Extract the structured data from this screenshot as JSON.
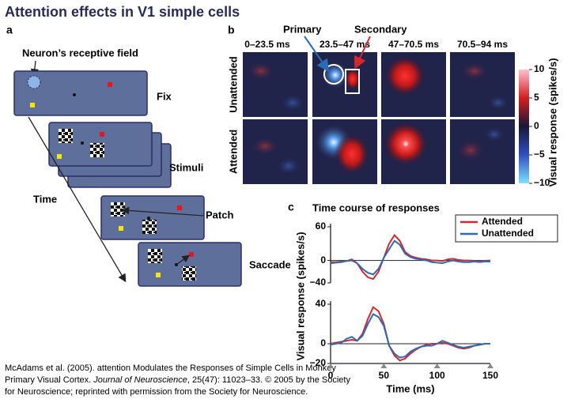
{
  "title": "Attention effects in V1 simple cells",
  "panel_a": {
    "label": "a",
    "receptive_field_label": "Neuron’s receptive field",
    "time_label": "Time",
    "steps": [
      "Fix",
      "Stimuli",
      "Patch",
      "Saccade"
    ]
  },
  "panel_b": {
    "label": "b",
    "annotations": [
      "Primary",
      "Secondary"
    ],
    "time_windows": [
      "0–23.5 ms",
      "23.5–47 ms",
      "47–70.5 ms",
      "70.5–94 ms"
    ],
    "rows": [
      "Unattended",
      "Attended"
    ],
    "colorbar": {
      "label": "Visual response (spikes/s)",
      "lim": [
        -10,
        10
      ],
      "ticks": [
        10,
        5,
        0,
        {
          "value": -5,
          "label": "−5"
        },
        {
          "value": -10,
          "label": "−10"
        }
      ]
    }
  },
  "panel_c": {
    "label": "c",
    "title": "Time course of responses",
    "ylabel": "Visual response (spikes/s)",
    "xlabel": "Time (ms)"
  },
  "chart_data": [
    {
      "type": "line",
      "x": [
        0,
        5,
        10,
        15,
        20,
        25,
        30,
        35,
        40,
        45,
        50,
        55,
        60,
        65,
        70,
        75,
        80,
        85,
        90,
        95,
        100,
        105,
        110,
        115,
        120,
        125,
        130,
        135,
        140,
        145,
        150
      ],
      "xlim": [
        0,
        150
      ],
      "ylim": [
        -40,
        60
      ],
      "yticks": [
        {
          "value": -40,
          "label": "−40"
        },
        0,
        60
      ],
      "legend": "upper right",
      "series": [
        {
          "name": "Attended",
          "color": "#d7262e",
          "values": [
            -3,
            -3,
            -2,
            -1,
            2,
            -5,
            -20,
            -30,
            -33,
            -20,
            5,
            30,
            45,
            35,
            15,
            8,
            5,
            3,
            2,
            0,
            0,
            -1,
            2,
            3,
            1,
            0,
            0,
            -1,
            -2,
            -1,
            0
          ]
        },
        {
          "name": "Unattended",
          "color": "#2b6cb5",
          "values": [
            -5,
            -4,
            -3,
            -1,
            0,
            -5,
            -15,
            -22,
            -25,
            -15,
            5,
            20,
            35,
            28,
            12,
            6,
            3,
            2,
            0,
            -3,
            -4,
            -5,
            -2,
            0,
            -2,
            -3,
            -3,
            -2,
            -3,
            -2,
            -2
          ]
        }
      ]
    },
    {
      "type": "line",
      "x": [
        0,
        5,
        10,
        15,
        20,
        25,
        30,
        35,
        40,
        45,
        50,
        55,
        60,
        65,
        70,
        75,
        80,
        85,
        90,
        95,
        100,
        105,
        110,
        115,
        120,
        125,
        130,
        135,
        140,
        145,
        150
      ],
      "xlim": [
        0,
        150
      ],
      "xticks": [
        0,
        50,
        100,
        150
      ],
      "ylim": [
        -20,
        40
      ],
      "yticks": [
        {
          "value": -20,
          "label": "−20"
        },
        0,
        40
      ],
      "series": [
        {
          "color": "#d7262e",
          "values": [
            0,
            1,
            2,
            3,
            4,
            3,
            10,
            25,
            37,
            33,
            20,
            -2,
            -12,
            -17,
            -15,
            -10,
            -6,
            -3,
            -1,
            0,
            0,
            1,
            0,
            -2,
            -4,
            -5,
            -4,
            -2,
            -1,
            0,
            0
          ]
        },
        {
          "color": "#2b6cb5",
          "values": [
            -1,
            0,
            1,
            5,
            7,
            3,
            8,
            20,
            30,
            27,
            18,
            -2,
            -10,
            -14,
            -13,
            -8,
            -5,
            -3,
            -2,
            -2,
            0,
            3,
            1,
            -1,
            -3,
            -4,
            -3,
            -2,
            -1,
            0,
            0
          ]
        }
      ]
    }
  ],
  "citation": [
    "McAdams et al. (2005). attention Modulates the Responses of Simple Cells in Monkey",
    "Primary Visual Cortex. ",
    "Journal of Neuroscience",
    ", 25(47): 11023–33. © 2005 by the Society",
    "for Neuroscience; reprinted with permission from the Society for Neuroscience."
  ]
}
